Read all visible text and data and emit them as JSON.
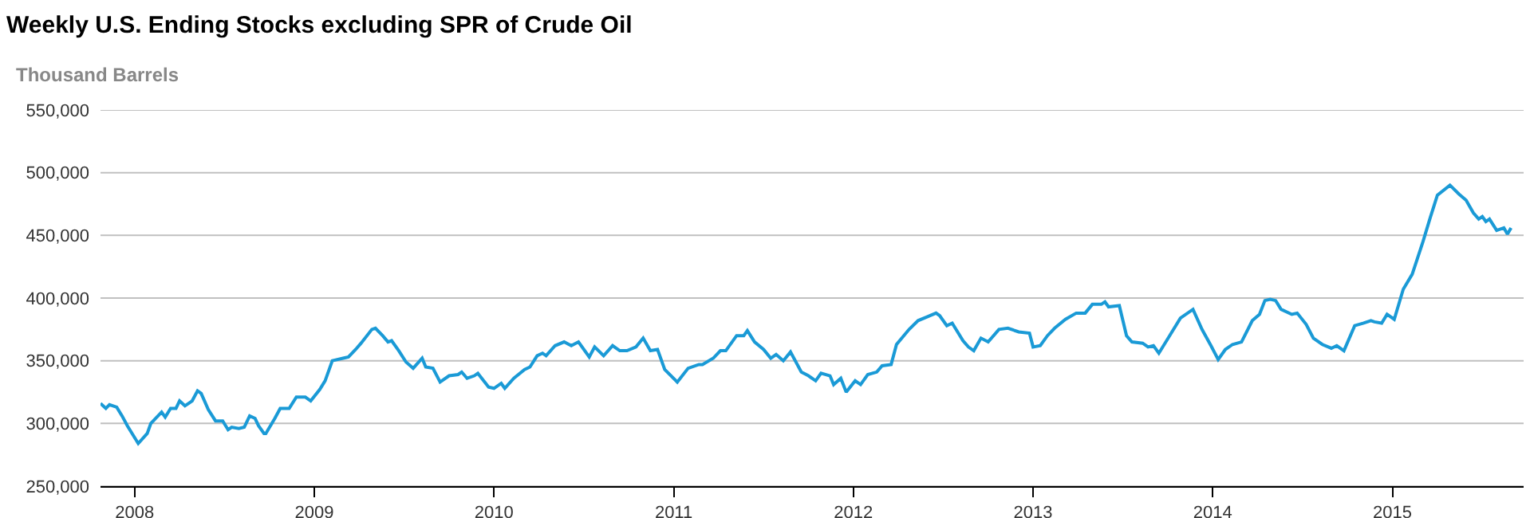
{
  "chart_data": {
    "type": "line",
    "title": "Weekly U.S. Ending Stocks excluding SPR of Crude Oil",
    "ylabel": "Thousand Barrels",
    "xlim": [
      2007.81,
      2015.73
    ],
    "xticks": [
      2008,
      2009,
      2010,
      2011,
      2012,
      2013,
      2014,
      2015
    ],
    "ylim": [
      250000,
      550000
    ],
    "yticks": [
      {
        "value": 250000,
        "label": "250,000"
      },
      {
        "value": 300000,
        "label": "300,000"
      },
      {
        "value": 350000,
        "label": "350,000"
      },
      {
        "value": 400000,
        "label": "400,000"
      },
      {
        "value": 450000,
        "label": "450,000"
      },
      {
        "value": 500000,
        "label": "500,000"
      },
      {
        "value": 550000,
        "label": "550,000"
      }
    ],
    "grid": "y",
    "marker": "none",
    "line_style": "solid",
    "series": [
      {
        "color": "#1a9ad6",
        "x": [
          2007.81,
          2007.84,
          2007.86,
          2007.9,
          2007.93,
          2007.96,
          2008.02,
          2008.07,
          2008.09,
          2008.15,
          2008.17,
          2008.2,
          2008.23,
          2008.25,
          2008.28,
          2008.32,
          2008.35,
          2008.37,
          2008.41,
          2008.45,
          2008.49,
          2008.52,
          2008.54,
          2008.58,
          2008.61,
          2008.64,
          2008.67,
          2008.69,
          2008.72,
          2008.73,
          2008.78,
          2008.81,
          2008.86,
          2008.9,
          2008.95,
          2008.98,
          2009.03,
          2009.06,
          2009.1,
          2009.16,
          2009.19,
          2009.23,
          2009.26,
          2009.32,
          2009.34,
          2009.38,
          2009.41,
          2009.43,
          2009.47,
          2009.51,
          2009.55,
          2009.6,
          2009.62,
          2009.66,
          2009.7,
          2009.75,
          2009.8,
          2009.82,
          2009.85,
          2009.89,
          2009.91,
          2009.97,
          2010.0,
          2010.04,
          2010.06,
          2010.11,
          2010.17,
          2010.2,
          2010.24,
          2010.27,
          2010.29,
          2010.34,
          2010.39,
          2010.43,
          2010.47,
          2010.53,
          2010.56,
          2010.61,
          2010.66,
          2010.7,
          2010.74,
          2010.79,
          2010.83,
          2010.87,
          2010.91,
          2010.95,
          2011.02,
          2011.08,
          2011.14,
          2011.16,
          2011.22,
          2011.26,
          2011.29,
          2011.35,
          2011.39,
          2011.41,
          2011.45,
          2011.5,
          2011.54,
          2011.57,
          2011.61,
          2011.65,
          2011.71,
          2011.75,
          2011.79,
          2011.82,
          2011.87,
          2011.89,
          2011.93,
          2011.96,
          2012.01,
          2012.04,
          2012.08,
          2012.13,
          2012.16,
          2012.21,
          2012.24,
          2012.31,
          2012.36,
          2012.41,
          2012.46,
          2012.48,
          2012.52,
          2012.55,
          2012.61,
          2012.64,
          2012.67,
          2012.71,
          2012.75,
          2012.81,
          2012.86,
          2012.92,
          2012.98,
          2013.0,
          2013.04,
          2013.08,
          2013.12,
          2013.18,
          2013.24,
          2013.29,
          2013.33,
          2013.38,
          2013.4,
          2013.42,
          2013.48,
          2013.52,
          2013.55,
          2013.61,
          2013.64,
          2013.67,
          2013.7,
          2013.76,
          2013.82,
          2013.89,
          2013.94,
          2013.99,
          2014.03,
          2014.07,
          2014.11,
          2014.16,
          2014.22,
          2014.26,
          2014.29,
          2014.32,
          2014.35,
          2014.38,
          2014.44,
          2014.47,
          2014.52,
          2014.56,
          2014.61,
          2014.66,
          2014.69,
          2014.73,
          2014.79,
          2014.84,
          2014.88,
          2014.9,
          2014.94,
          2014.97,
          2015.01,
          2015.06,
          2015.11,
          2015.17,
          2015.21,
          2015.25,
          2015.32,
          2015.37,
          2015.41,
          2015.45,
          2015.48,
          2015.5,
          2015.52,
          2015.54,
          2015.58,
          2015.62,
          2015.64,
          2015.66
        ],
        "values": [
          316000,
          312000,
          315000,
          313000,
          306000,
          298000,
          284000,
          292000,
          300000,
          309000,
          305000,
          312000,
          312000,
          318000,
          314000,
          318000,
          326000,
          324000,
          311000,
          302000,
          302000,
          295000,
          297000,
          296000,
          297000,
          306000,
          304000,
          298000,
          292000,
          292000,
          304000,
          312000,
          312000,
          321000,
          321000,
          318000,
          327000,
          334000,
          350000,
          352000,
          353000,
          359000,
          364000,
          375000,
          376000,
          370000,
          365000,
          366000,
          358000,
          349000,
          344000,
          352000,
          345000,
          344000,
          333000,
          338000,
          339000,
          341000,
          336000,
          338000,
          340000,
          329000,
          328000,
          332000,
          328000,
          336000,
          343000,
          345000,
          354000,
          356000,
          354000,
          362000,
          365000,
          362000,
          365000,
          353000,
          361000,
          354000,
          362000,
          358000,
          358000,
          361000,
          368000,
          358000,
          359000,
          343000,
          333000,
          344000,
          347000,
          347000,
          352000,
          358000,
          358000,
          370000,
          370000,
          374000,
          365000,
          359000,
          352000,
          355000,
          350000,
          357000,
          341000,
          338000,
          334000,
          340000,
          338000,
          331000,
          336000,
          325000,
          334000,
          331000,
          339000,
          341000,
          346000,
          347000,
          363000,
          375000,
          382000,
          385000,
          388000,
          386000,
          378000,
          380000,
          366000,
          361000,
          358000,
          368000,
          365000,
          375000,
          376000,
          373000,
          372000,
          361000,
          362000,
          370000,
          376000,
          383000,
          388000,
          388000,
          395000,
          395000,
          397000,
          393000,
          394000,
          370000,
          365000,
          364000,
          361000,
          362000,
          356000,
          370000,
          384000,
          391000,
          375000,
          362000,
          351000,
          359000,
          363000,
          365000,
          382000,
          387000,
          398000,
          399000,
          398000,
          391000,
          387000,
          388000,
          379000,
          368000,
          363000,
          360000,
          362000,
          358000,
          378000,
          380000,
          382000,
          381000,
          380000,
          387000,
          383000,
          407000,
          419000,
          445000,
          464000,
          482000,
          490000,
          483000,
          478000,
          468000,
          463000,
          465000,
          461000,
          463000,
          454000,
          456000,
          451000,
          456000
        ]
      }
    ]
  }
}
